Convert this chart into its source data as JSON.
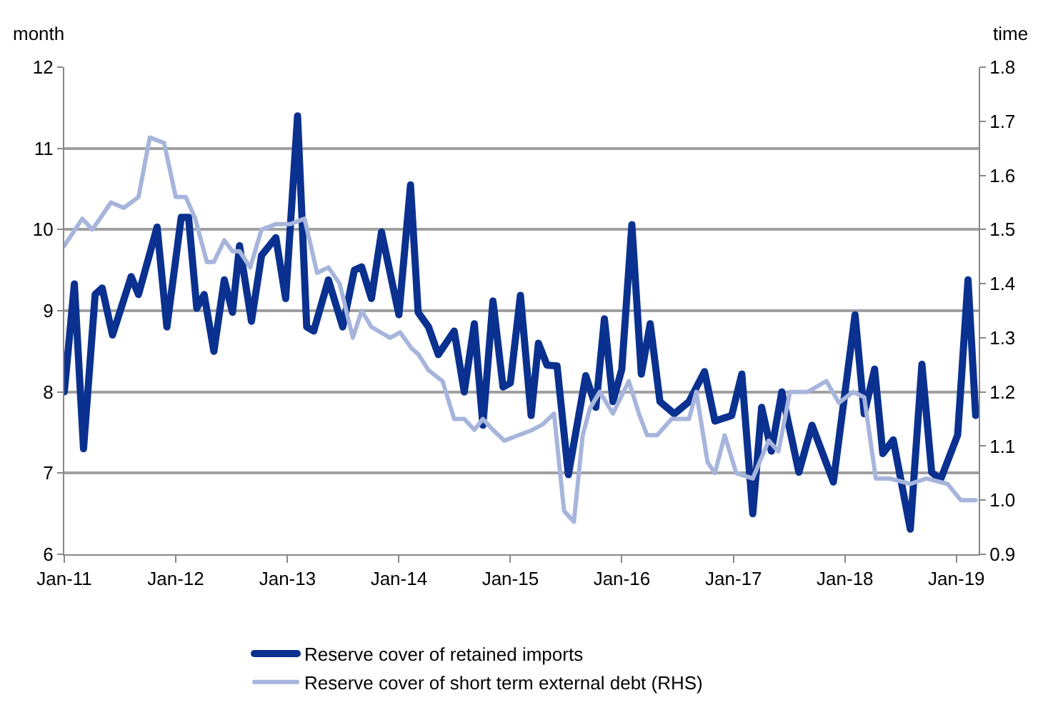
{
  "chart_data": {
    "type": "line",
    "ylabel": "month",
    "y2label": "time",
    "xlim": [
      "2011-01-01",
      "2019-03-15"
    ],
    "xticks": [
      {
        "value": "2011-01-01",
        "label": "Jan-11"
      },
      {
        "value": "2012-01-01",
        "label": "Jan-12"
      },
      {
        "value": "2013-01-01",
        "label": "Jan-13"
      },
      {
        "value": "2014-01-01",
        "label": "Jan-14"
      },
      {
        "value": "2015-01-01",
        "label": "Jan-15"
      },
      {
        "value": "2016-01-01",
        "label": "Jan-16"
      },
      {
        "value": "2017-01-01",
        "label": "Jan-17"
      },
      {
        "value": "2018-01-01",
        "label": "Jan-18"
      },
      {
        "value": "2019-01-01",
        "label": "Jan-19"
      }
    ],
    "ylim": [
      6,
      12
    ],
    "yticks": [
      6,
      7,
      8,
      9,
      10,
      11,
      12
    ],
    "y2lim": [
      0.9,
      1.8
    ],
    "y2ticks": [
      0.9,
      {
        "value": 1,
        "label": "1.0"
      },
      1.1,
      1.2,
      1.3,
      1.4,
      1.5,
      1.6,
      1.7,
      1.8
    ],
    "grid": "y",
    "legend": "bottom",
    "line_style": "solid",
    "marker": "none",
    "series": [
      {
        "name": "Reserve cover of retained imports",
        "color": "#0a318f",
        "x": [
          "2011-01-01",
          "2011-02-03",
          "2011-03-05",
          "2011-04-12",
          "2011-05-05",
          "2011-06-08",
          "2011-08-08",
          "2011-09-01",
          "2011-11-01",
          "2011-12-03",
          "2012-01-19",
          "2012-02-12",
          "2012-03-10",
          "2012-04-03",
          "2012-05-05",
          "2012-06-08",
          "2012-07-05",
          "2012-07-28",
          "2012-09-05",
          "2012-10-08",
          "2012-11-24",
          "2012-12-26",
          "2013-02-03",
          "2013-03-05",
          "2013-03-28",
          "2013-05-15",
          "2013-07-01",
          "2013-08-08",
          "2013-09-01",
          "2013-10-03",
          "2013-11-05",
          "2014-01-01",
          "2014-02-08",
          "2014-03-05",
          "2014-04-08",
          "2014-05-10",
          "2014-07-01",
          "2014-08-03",
          "2014-09-05",
          "2014-10-03",
          "2014-11-05",
          "2014-12-08",
          "2015-01-01",
          "2015-02-03",
          "2015-03-10",
          "2015-04-03",
          "2015-05-01",
          "2015-06-03",
          "2015-07-10",
          "2015-09-05",
          "2015-10-08",
          "2015-11-05",
          "2015-12-03",
          "2016-01-01",
          "2016-02-03",
          "2016-03-05",
          "2016-04-03",
          "2016-05-05",
          "2016-06-21",
          "2016-08-08",
          "2016-09-28",
          "2016-11-01",
          "2016-12-26",
          "2017-01-28",
          "2017-03-05",
          "2017-04-03",
          "2017-05-05",
          "2017-06-08",
          "2017-08-03",
          "2017-09-15",
          "2017-11-24",
          "2018-02-03",
          "2018-03-05",
          "2018-04-08",
          "2018-05-05",
          "2018-06-08",
          "2018-08-03",
          "2018-09-10",
          "2018-10-12",
          "2018-11-10",
          "2019-01-05",
          "2019-02-08",
          "2019-03-05"
        ],
        "values": [
          8.0,
          9.33,
          7.3,
          9.2,
          9.28,
          8.7,
          9.42,
          9.2,
          10.03,
          8.8,
          10.15,
          10.15,
          9.03,
          9.2,
          8.5,
          9.38,
          8.98,
          9.8,
          8.87,
          9.68,
          9.9,
          9.15,
          11.4,
          8.8,
          8.75,
          9.38,
          8.8,
          9.5,
          9.54,
          9.15,
          9.97,
          8.95,
          10.55,
          8.98,
          8.8,
          8.46,
          8.75,
          8.0,
          8.84,
          7.59,
          9.12,
          8.06,
          8.11,
          9.19,
          7.71,
          8.6,
          8.33,
          8.32,
          6.98,
          8.2,
          7.81,
          8.9,
          7.88,
          8.28,
          10.06,
          8.22,
          8.84,
          7.88,
          7.73,
          7.88,
          8.25,
          7.64,
          7.71,
          8.22,
          6.5,
          7.81,
          7.27,
          8.0,
          7.01,
          7.59,
          6.89,
          8.95,
          7.73,
          8.28,
          7.24,
          7.41,
          6.31,
          8.34,
          7.01,
          6.92,
          7.47,
          9.38,
          7.71
        ]
      },
      {
        "name": "Reserve cover of short term external debt (RHS)",
        "color": "#a7b5dc",
        "axis": "y2",
        "x": [
          "2011-01-01",
          "2011-03-01",
          "2011-04-03",
          "2011-06-03",
          "2011-07-15",
          "2011-09-01",
          "2011-10-08",
          "2011-11-24",
          "2012-01-01",
          "2012-02-03",
          "2012-03-05",
          "2012-04-12",
          "2012-05-05",
          "2012-06-08",
          "2012-07-05",
          "2012-07-28",
          "2012-09-01",
          "2012-10-08",
          "2012-11-24",
          "2013-01-10",
          "2013-02-26",
          "2013-04-08",
          "2013-05-15",
          "2013-06-21",
          "2013-08-03",
          "2013-09-01",
          "2013-10-03",
          "2013-12-03",
          "2014-01-05",
          "2014-02-12",
          "2014-03-05",
          "2014-04-08",
          "2014-05-24",
          "2014-07-01",
          "2014-08-03",
          "2014-09-05",
          "2014-10-03",
          "2014-11-05",
          "2014-12-12",
          "2015-01-28",
          "2015-03-15",
          "2015-04-17",
          "2015-05-24",
          "2015-06-26",
          "2015-07-28",
          "2015-08-26",
          "2015-09-19",
          "2015-10-21",
          "2015-12-03",
          "2016-01-24",
          "2016-02-26",
          "2016-03-24",
          "2016-04-26",
          "2016-06-12",
          "2016-08-08",
          "2016-09-01",
          "2016-10-08",
          "2016-11-01",
          "2016-12-03",
          "2017-01-10",
          "2017-03-05",
          "2017-04-26",
          "2017-05-28",
          "2017-07-05",
          "2017-09-01",
          "2017-11-01",
          "2017-12-12",
          "2018-01-28",
          "2018-03-05",
          "2018-04-12",
          "2018-05-28",
          "2018-08-03",
          "2018-09-24",
          "2018-12-03",
          "2019-01-15",
          "2019-03-05"
        ],
        "values": [
          1.47,
          1.52,
          1.5,
          1.55,
          1.54,
          1.56,
          1.67,
          1.66,
          1.56,
          1.56,
          1.52,
          1.44,
          1.44,
          1.48,
          1.46,
          1.46,
          1.43,
          1.5,
          1.51,
          1.51,
          1.52,
          1.42,
          1.43,
          1.4,
          1.3,
          1.35,
          1.32,
          1.3,
          1.31,
          1.28,
          1.27,
          1.24,
          1.22,
          1.15,
          1.15,
          1.13,
          1.15,
          1.13,
          1.11,
          1.12,
          1.13,
          1.14,
          1.16,
          0.98,
          0.96,
          1.12,
          1.17,
          1.2,
          1.16,
          1.22,
          1.16,
          1.12,
          1.12,
          1.15,
          1.15,
          1.2,
          1.07,
          1.05,
          1.12,
          1.05,
          1.04,
          1.11,
          1.09,
          1.2,
          1.2,
          1.22,
          1.18,
          1.2,
          1.19,
          1.04,
          1.04,
          1.03,
          1.04,
          1.03,
          1.0,
          1.0
        ]
      }
    ]
  }
}
